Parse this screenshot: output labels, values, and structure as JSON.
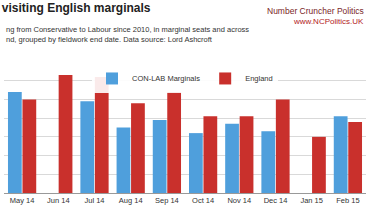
{
  "chart_data": {
    "type": "bar",
    "title": "visiting English marginals",
    "subtitle": [
      "ng from Conservative to Labour since 2010, in marginal seats and across",
      "nd, grouped by fieldwork end date. Data source: Lord Ashcroft"
    ],
    "annotations": [
      "Number Cruncher Politics",
      "www.NCPolitics.UK"
    ],
    "categories": [
      "May 14",
      "Jun 14",
      "Jul 14",
      "Aug 14",
      "Sep 14",
      "Oct 14",
      "Nov 14",
      "Dec 14",
      "Jan 15",
      "Feb 15"
    ],
    "series": [
      {
        "name": "CON-LAB Marginals",
        "color": "#4f9fdc",
        "values": [
          5.4,
          null,
          4.9,
          3.5,
          3.9,
          3.2,
          3.7,
          3.3,
          null,
          4.1
        ]
      },
      {
        "name": "England",
        "color": "#c9302c",
        "values": [
          5.0,
          6.3,
          6.2,
          4.8,
          5.4,
          4.1,
          4.1,
          5.0,
          3.0,
          3.8
        ]
      }
    ],
    "ylim": [
      0,
      7
    ],
    "yticks": [
      0,
      1,
      2,
      3,
      4,
      5,
      6,
      7
    ],
    "grid": true,
    "legend": "top",
    "tick_labels": "x"
  }
}
